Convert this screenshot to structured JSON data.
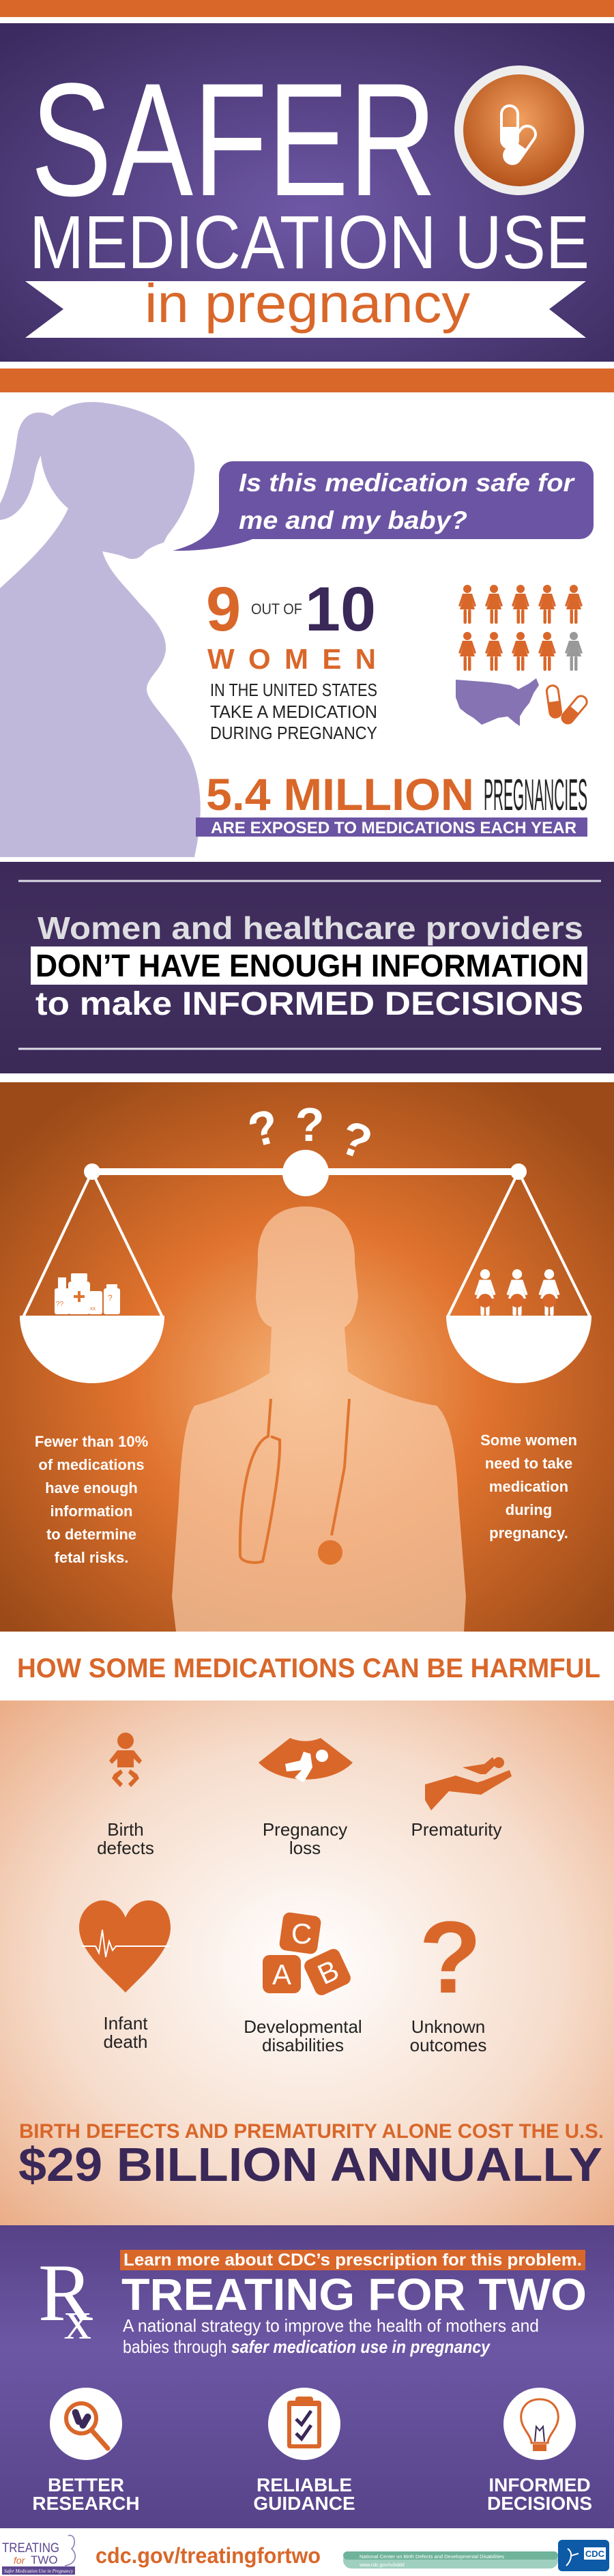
{
  "colors": {
    "orange": "#D9672A",
    "purple_dark": "#3D2A5A",
    "purple": "#6B54A3",
    "lavender": "#C0B8DA",
    "ink_purple": "#3A2858",
    "green": "#9FCFBE",
    "cdc_blue": "#0D5AA7"
  },
  "header": {
    "title_line1": "SAFER",
    "title_line2": "MEDICATION USE",
    "subtitle": "in pregnancy",
    "badge_icon": "pill-capsules-icon"
  },
  "stats": {
    "question_line1": "Is this medication safe for",
    "question_line2": "me and my baby?",
    "nine": "9",
    "out_of": "OUT OF",
    "ten": "10",
    "women": "WOMEN",
    "desc_line1": "IN THE UNITED STATES",
    "desc_line2": "TAKE  A  MEDICATION",
    "desc_line3": "DURING  PREGNANCY",
    "women_icons": {
      "total": 10,
      "highlighted": 9
    },
    "million": "5.4 MILLION",
    "pregnancies": "PREGNANCIES",
    "exposed": "ARE EXPOSED TO MEDICATIONS EACH YEAR"
  },
  "banner": {
    "line1": "Women and healthcare providers",
    "line2": "DON’T HAVE ENOUGH INFORMATION",
    "line3": "to make INFORMED DECISIONS"
  },
  "scale": {
    "question_marks": [
      "?",
      "?",
      "?"
    ],
    "left_lines": [
      "Fewer than 10%",
      "of medications",
      "have enough",
      "information",
      "to determine",
      "fetal risks."
    ],
    "right_lines": [
      "Some women",
      "need to take",
      "medication",
      "during",
      "pregnancy."
    ],
    "bottle_marks": [
      "??",
      "?",
      "xx"
    ]
  },
  "harms": {
    "heading": "HOW SOME MEDICATIONS CAN BE HARMFUL",
    "items": [
      {
        "icon": "baby-icon",
        "lines": [
          "Birth",
          "defects"
        ]
      },
      {
        "icon": "ultrasound-icon",
        "lines": [
          "Pregnancy",
          "loss"
        ]
      },
      {
        "icon": "hand-holding-baby-icon",
        "lines": [
          "Prematurity"
        ]
      },
      {
        "icon": "heart-ecg-icon",
        "lines": [
          "Infant",
          "death"
        ]
      },
      {
        "icon": "abc-blocks-icon",
        "lines": [
          "Developmental",
          "disabilities"
        ]
      },
      {
        "icon": "question-mark-icon",
        "lines": [
          "Unknown",
          "outcomes"
        ]
      }
    ],
    "block_letters": [
      "C",
      "A",
      "B"
    ],
    "question_glyph": "?",
    "cost_line1": "BIRTH DEFECTS AND PREMATURITY ALONE COST THE U.S.",
    "cost_line2": "$29 BILLION ANNUALLY"
  },
  "treating": {
    "rx_r": "R",
    "rx_x": "x",
    "learn_more": "Learn more about CDC’s prescription for this problem.",
    "title": "TREATING FOR TWO",
    "desc_line1": "A national strategy to improve the health of mothers and",
    "desc_line2_plain": "babies through ",
    "desc_line2_italic": "safer medication use in pregnancy",
    "pillars": [
      {
        "icon": "magnifier-pills-icon",
        "lines": [
          "BETTER",
          "RESEARCH"
        ]
      },
      {
        "icon": "clipboard-check-icon",
        "lines": [
          "RELIABLE",
          "GUIDANCE"
        ]
      },
      {
        "icon": "lightbulb-icon",
        "lines": [
          "INFORMED",
          "DECISIONS"
        ]
      }
    ]
  },
  "footer": {
    "logo_treating": "TREATING",
    "logo_for": "for",
    "logo_two": "TWO",
    "logo_tagline": "Safer Medication Use in Pregnancy",
    "url": "cdc.gov/treatingfortwo",
    "ncbddd_name": "National Center on Birth Defects and Developmental Disabilities",
    "ncbddd_url": "www.cdc.gov/ncbddd",
    "cdc": "CDC"
  }
}
